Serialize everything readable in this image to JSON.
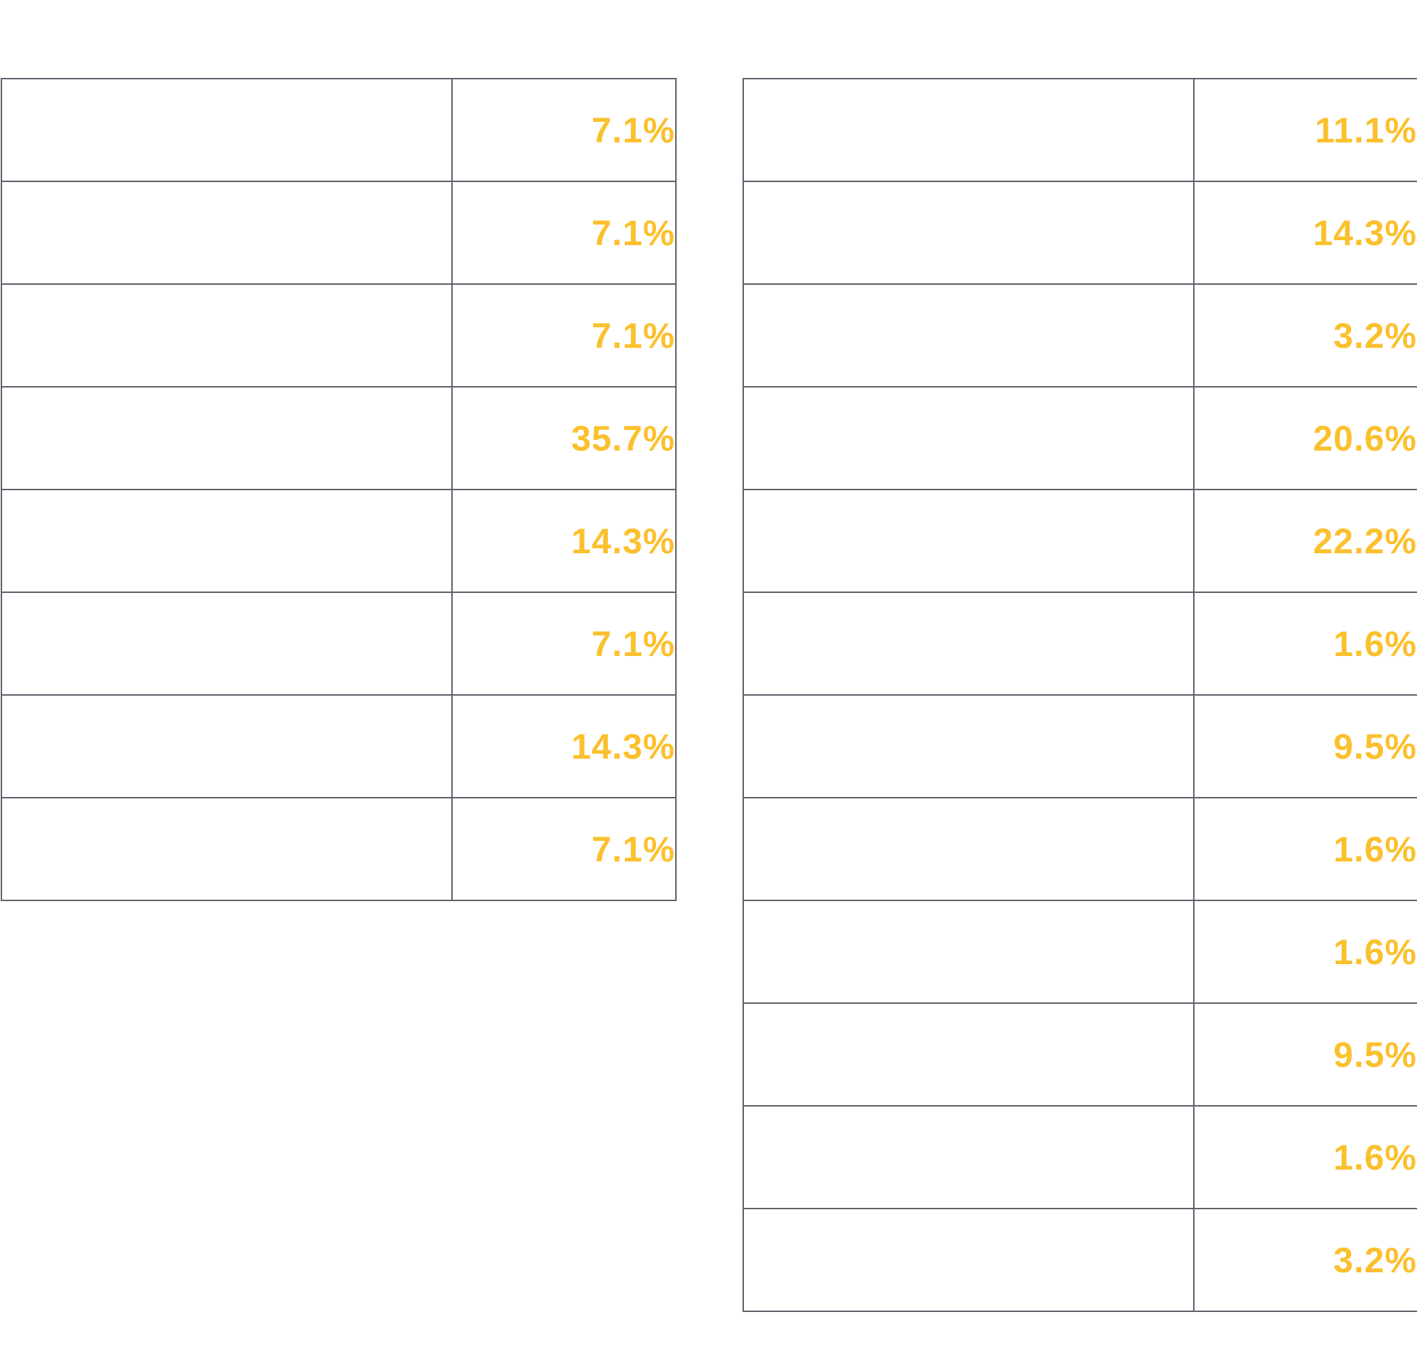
{
  "colors": {
    "value_text": "#fbc02d",
    "border": "#5b616a",
    "background": "#ffffff"
  },
  "left_table": {
    "rows": [
      {
        "label": "",
        "value": "7.1%"
      },
      {
        "label": "",
        "value": "7.1%"
      },
      {
        "label": "",
        "value": "7.1%"
      },
      {
        "label": "",
        "value": "35.7%"
      },
      {
        "label": "",
        "value": "14.3%"
      },
      {
        "label": "",
        "value": "7.1%"
      },
      {
        "label": "",
        "value": "14.3%"
      },
      {
        "label": "",
        "value": "7.1%"
      }
    ]
  },
  "right_table": {
    "rows": [
      {
        "label": "",
        "value": "11.1%"
      },
      {
        "label": "",
        "value": "14.3%"
      },
      {
        "label": "",
        "value": "3.2%"
      },
      {
        "label": "",
        "value": "20.6%"
      },
      {
        "label": "",
        "value": "22.2%"
      },
      {
        "label": "",
        "value": "1.6%"
      },
      {
        "label": "",
        "value": "9.5%"
      },
      {
        "label": "",
        "value": "1.6%"
      },
      {
        "label": "",
        "value": "1.6%"
      },
      {
        "label": "",
        "value": "9.5%"
      },
      {
        "label": "",
        "value": "1.6%"
      },
      {
        "label": "",
        "value": "3.2%"
      }
    ]
  }
}
